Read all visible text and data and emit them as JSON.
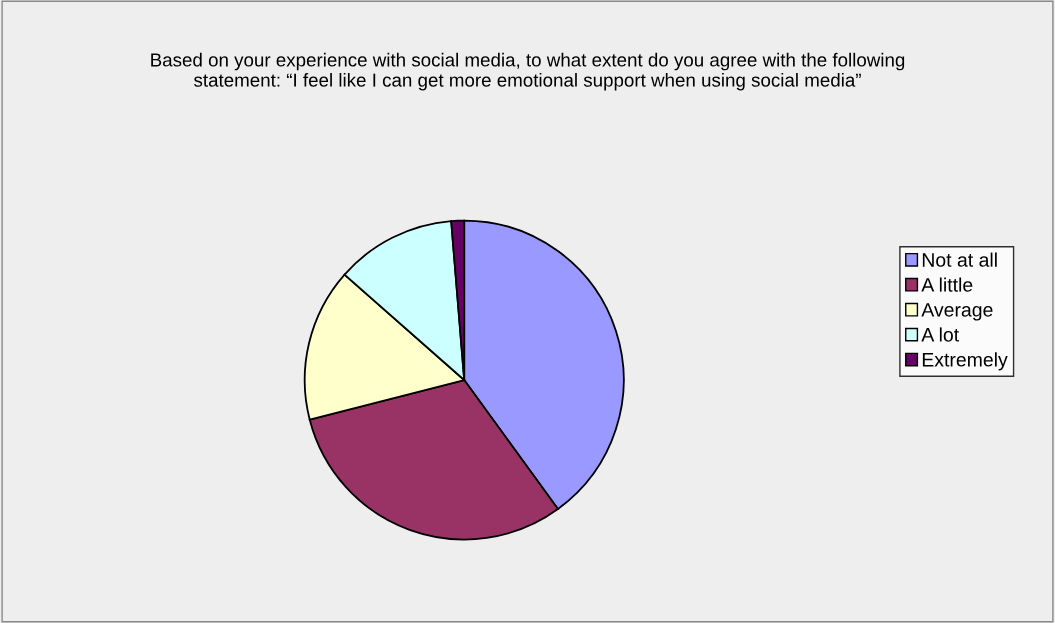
{
  "chart_data": {
    "type": "pie",
    "title": "Based on your experience with social media, to what extent do you agree with the following statement: “I feel like I can get more emotional support when using social media”",
    "categories": [
      "Not at all",
      "A little",
      "Average",
      "A lot",
      "Extremely"
    ],
    "values": [
      40,
      31,
      15.5,
      12.2,
      1.3
    ],
    "colors": [
      "#9999ff",
      "#993366",
      "#ffffcc",
      "#ccffff",
      "#660066"
    ],
    "legend": "right"
  }
}
